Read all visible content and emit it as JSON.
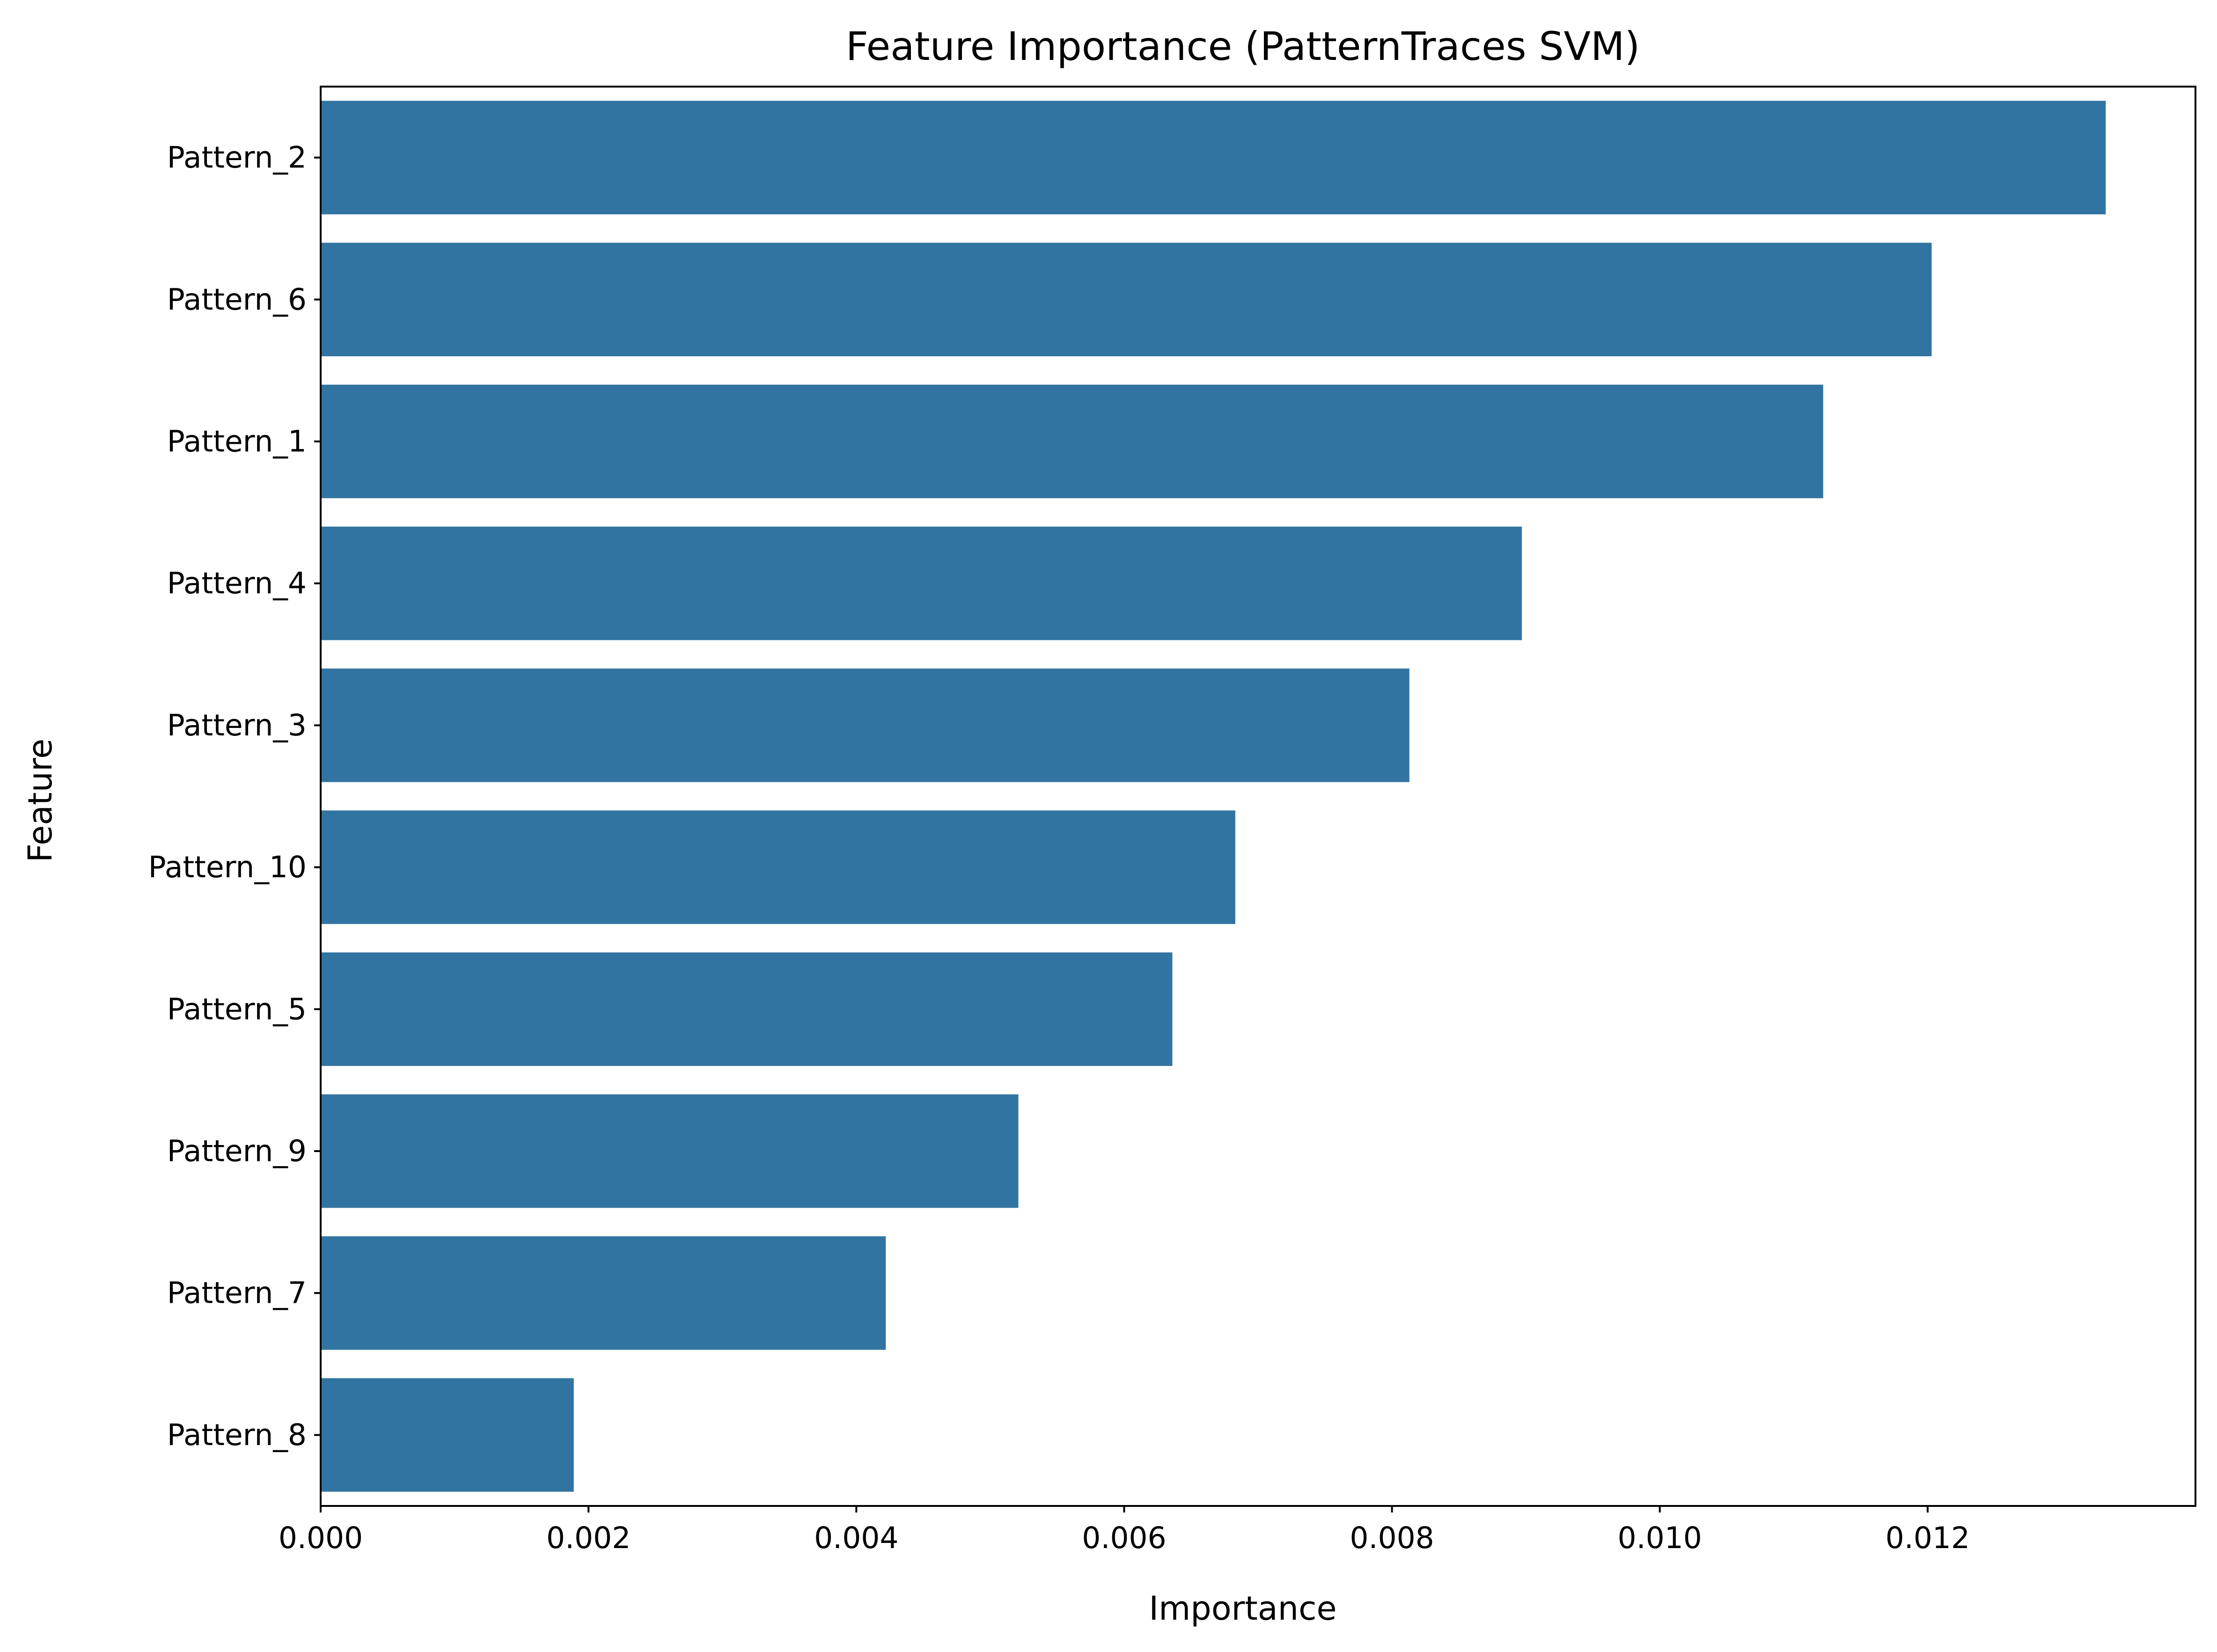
{
  "chart_data": {
    "type": "bar",
    "orientation": "horizontal",
    "title": "Feature Importance (PatternTraces SVM)",
    "xlabel": "Importance",
    "ylabel": "Feature",
    "categories": [
      "Pattern_2",
      "Pattern_6",
      "Pattern_1",
      "Pattern_4",
      "Pattern_3",
      "Pattern_10",
      "Pattern_5",
      "Pattern_9",
      "Pattern_7",
      "Pattern_8"
    ],
    "values": [
      0.01333,
      0.01203,
      0.01122,
      0.00897,
      0.00813,
      0.00683,
      0.00636,
      0.00521,
      0.00422,
      0.00189
    ],
    "xlim": [
      0,
      0.014
    ],
    "xticks": [
      0.0,
      0.002,
      0.004,
      0.006,
      0.008,
      0.01,
      0.012
    ],
    "xtick_labels": [
      "0.000",
      "0.002",
      "0.004",
      "0.006",
      "0.008",
      "0.010",
      "0.012"
    ],
    "grid": false,
    "legend": "none",
    "colors": {
      "bar": "#3274a1",
      "axis": "#000000",
      "background": "#ffffff"
    }
  }
}
